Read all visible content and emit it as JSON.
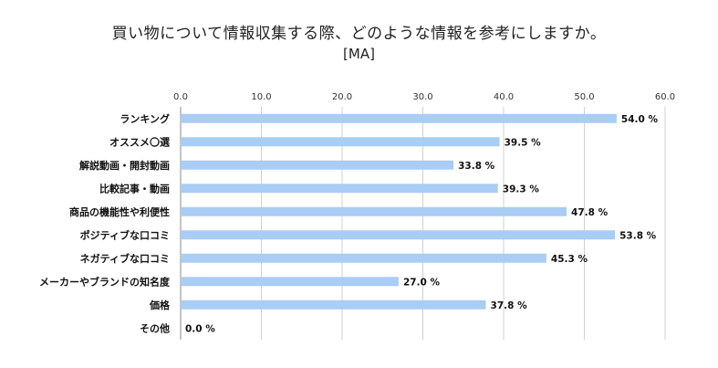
{
  "chart_data": {
    "type": "bar",
    "orientation": "horizontal",
    "title": "買い物について情報収集する際、どのような情報を参考にしますか。",
    "subtitle": "[MA]",
    "categories": [
      "ランキング",
      "オススメ〇選",
      "解説動画・開封動画",
      "比較記事・動画",
      "商品の機能性や利便性",
      "ポジティブな口コミ",
      "ネガティブな口コミ",
      "メーカーやブランドの知名度",
      "価格",
      "その他"
    ],
    "values": [
      54.0,
      39.5,
      33.8,
      39.3,
      47.8,
      53.8,
      45.3,
      27.0,
      37.8,
      0.0
    ],
    "value_labels": [
      "54.0 %",
      "39.5 %",
      "33.8 %",
      "39.3 %",
      "47.8 %",
      "53.8 %",
      "45.3 %",
      "27.0 %",
      "37.8 %",
      "0.0 %"
    ],
    "xlim": [
      0,
      60
    ],
    "x_ticks": [
      "0.0",
      "10.0",
      "20.0",
      "30.0",
      "40.0",
      "50.0",
      "60.0"
    ],
    "axis_position": "top",
    "grid": true,
    "bar_color": "#a9cdf4"
  }
}
